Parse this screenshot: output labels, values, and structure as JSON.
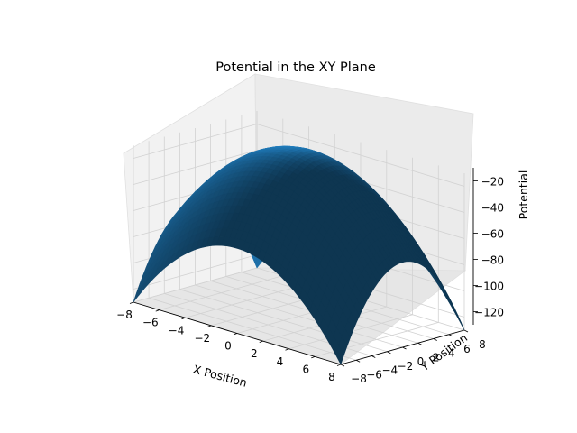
{
  "chart_data": {
    "type": "surface",
    "title": "Potential in the XY Plane",
    "xlabel": "X Position",
    "ylabel": "Y Position",
    "zlabel": "Potential",
    "x_ticks": [
      -8,
      -6,
      -4,
      -2,
      0,
      2,
      4,
      6,
      8
    ],
    "y_ticks": [
      -8,
      -6,
      -4,
      -2,
      0,
      2,
      4,
      6,
      8
    ],
    "z_ticks": [
      -20,
      -40,
      -60,
      -80,
      -100,
      -120
    ],
    "xlim": [
      -8,
      8
    ],
    "ylim": [
      -8,
      8
    ],
    "zlim": [
      -130,
      -10
    ],
    "grid": true,
    "surface_color": "#1f77b4",
    "surface": {
      "x_range": [
        -8,
        8
      ],
      "y_range": [
        -8,
        8
      ],
      "peak_at": [
        0,
        0
      ],
      "peak_value": -3,
      "corner_value": -130,
      "edge_midpoint_value": -65
    }
  }
}
